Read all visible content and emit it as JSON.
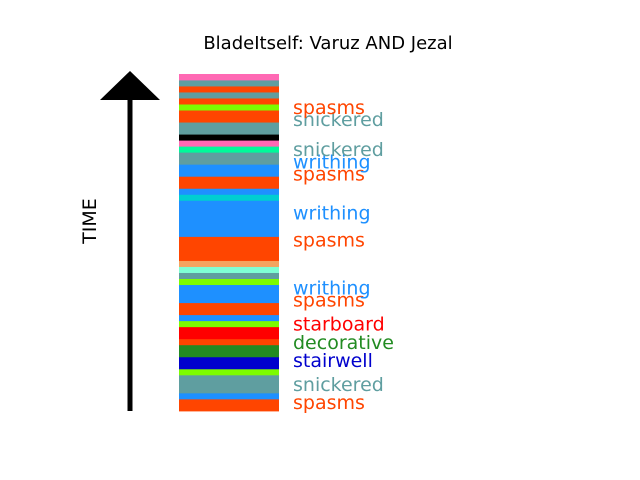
{
  "chart_data": {
    "type": "bar",
    "title": "BladeItself: Varuz AND Jezal",
    "ylabel": "TIME",
    "ylim": [
      0,
      56
    ],
    "segments": [
      {
        "y0": 0,
        "y1": 2,
        "color": "#ff4500"
      },
      {
        "y0": 2,
        "y1": 3,
        "color": "#1e90ff"
      },
      {
        "y0": 3,
        "y1": 6,
        "color": "#5f9ea0"
      },
      {
        "y0": 6,
        "y1": 7,
        "color": "#7cfc00"
      },
      {
        "y0": 7,
        "y1": 9,
        "color": "#0000cd"
      },
      {
        "y0": 9,
        "y1": 11,
        "color": "#228b22"
      },
      {
        "y0": 11,
        "y1": 12,
        "color": "#ff4500"
      },
      {
        "y0": 12,
        "y1": 14,
        "color": "#ff0000"
      },
      {
        "y0": 14,
        "y1": 15,
        "color": "#7cfc00"
      },
      {
        "y0": 15,
        "y1": 16,
        "color": "#1e90ff"
      },
      {
        "y0": 16,
        "y1": 18,
        "color": "#ff4500"
      },
      {
        "y0": 18,
        "y1": 21,
        "color": "#1e90ff"
      },
      {
        "y0": 21,
        "y1": 22,
        "color": "#7cfc00"
      },
      {
        "y0": 22,
        "y1": 23,
        "color": "#5f9ea0"
      },
      {
        "y0": 23,
        "y1": 24,
        "color": "#7fffd4"
      },
      {
        "y0": 24,
        "y1": 25,
        "color": "#f4a460"
      },
      {
        "y0": 25,
        "y1": 29,
        "color": "#ff4500"
      },
      {
        "y0": 29,
        "y1": 35,
        "color": "#1e90ff"
      },
      {
        "y0": 35,
        "y1": 36,
        "color": "#00ced1"
      },
      {
        "y0": 36,
        "y1": 37,
        "color": "#1e90ff"
      },
      {
        "y0": 37,
        "y1": 39,
        "color": "#ff4500"
      },
      {
        "y0": 39,
        "y1": 41,
        "color": "#1e90ff"
      },
      {
        "y0": 41,
        "y1": 43,
        "color": "#5f9ea0"
      },
      {
        "y0": 43,
        "y1": 44,
        "color": "#00fa9a"
      },
      {
        "y0": 44,
        "y1": 45,
        "color": "#ff69b4"
      },
      {
        "y0": 45,
        "y1": 46,
        "color": "#000000"
      },
      {
        "y0": 46,
        "y1": 48,
        "color": "#5f9ea0"
      },
      {
        "y0": 48,
        "y1": 50,
        "color": "#ff4500"
      },
      {
        "y0": 50,
        "y1": 51,
        "color": "#7cfc00"
      },
      {
        "y0": 51,
        "y1": 52,
        "color": "#ff4500"
      },
      {
        "y0": 52,
        "y1": 53,
        "color": "#5f9ea0"
      },
      {
        "y0": 53,
        "y1": 54,
        "color": "#ff4500"
      },
      {
        "y0": 54,
        "y1": 55,
        "color": "#5f9ea0"
      },
      {
        "y0": 55,
        "y1": 56,
        "color": "#ff69b4"
      }
    ],
    "labels": [
      {
        "text": "spasms",
        "y": 1.5,
        "color": "#ff4500"
      },
      {
        "text": "snickered",
        "y": 4.5,
        "color": "#5f9ea0"
      },
      {
        "text": "stairwell",
        "y": 8.5,
        "color": "#0000cd"
      },
      {
        "text": "decorative",
        "y": 11.5,
        "color": "#228b22"
      },
      {
        "text": "starboard",
        "y": 14.5,
        "color": "#ff0000"
      },
      {
        "text": "spasms",
        "y": 18.5,
        "color": "#ff4500"
      },
      {
        "text": "writhing",
        "y": 20.5,
        "color": "#1e90ff"
      },
      {
        "text": "spasms",
        "y": 28.5,
        "color": "#ff4500"
      },
      {
        "text": "writhing",
        "y": 33.0,
        "color": "#1e90ff"
      },
      {
        "text": "spasms",
        "y": 39.5,
        "color": "#ff4500"
      },
      {
        "text": "writhing",
        "y": 41.5,
        "color": "#1e90ff"
      },
      {
        "text": "snickered",
        "y": 43.5,
        "color": "#5f9ea0"
      },
      {
        "text": "snickered",
        "y": 48.5,
        "color": "#5f9ea0"
      },
      {
        "text": "spasms",
        "y": 50.5,
        "color": "#ff4500"
      }
    ]
  }
}
